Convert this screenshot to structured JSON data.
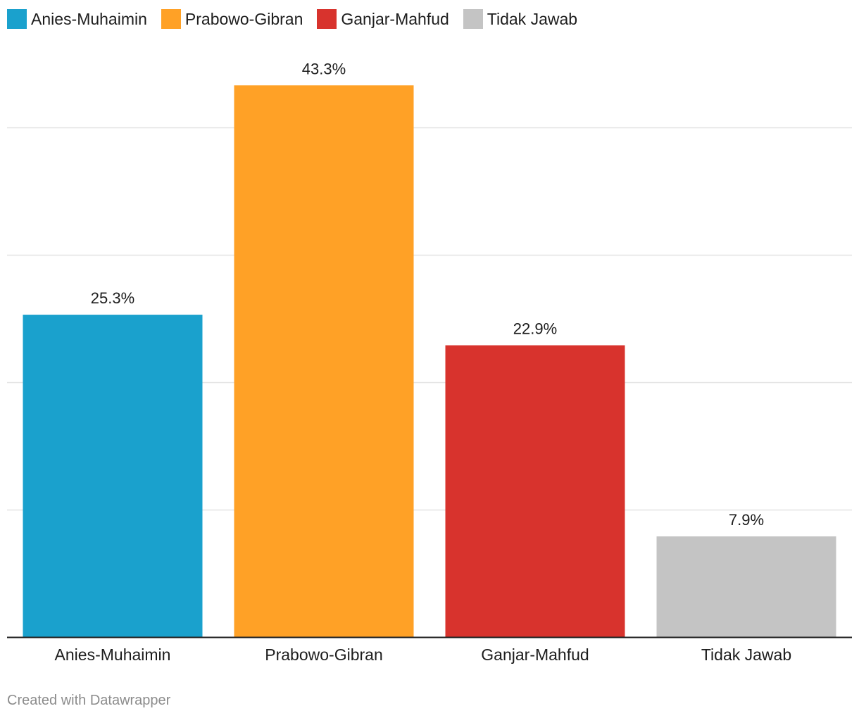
{
  "chart_data": {
    "type": "bar",
    "categories": [
      "Anies-Muhaimin",
      "Prabowo-Gibran",
      "Ganjar-Mahfud",
      "Tidak Jawab"
    ],
    "values": [
      25.3,
      43.3,
      22.9,
      7.9
    ],
    "value_labels": [
      "25.3%",
      "43.3%",
      "22.9%",
      "7.9%"
    ],
    "colors": [
      "#1aa1cd",
      "#ffa126",
      "#d8332d",
      "#c4c4c4"
    ],
    "legend": [
      {
        "label": "Anies-Muhaimin",
        "color": "#1aa1cd"
      },
      {
        "label": "Prabowo-Gibran",
        "color": "#ffa126"
      },
      {
        "label": "Ganjar-Mahfud",
        "color": "#d8332d"
      },
      {
        "label": "Tidak Jawab",
        "color": "#c4c4c4"
      }
    ],
    "legend_position": "top-left",
    "ylim": [
      0,
      40
    ],
    "gridlines": [
      10,
      20,
      30,
      40
    ],
    "grid": true,
    "title": "",
    "xlabel": "",
    "ylabel": ""
  },
  "footer": {
    "credit": "Created with Datawrapper"
  }
}
